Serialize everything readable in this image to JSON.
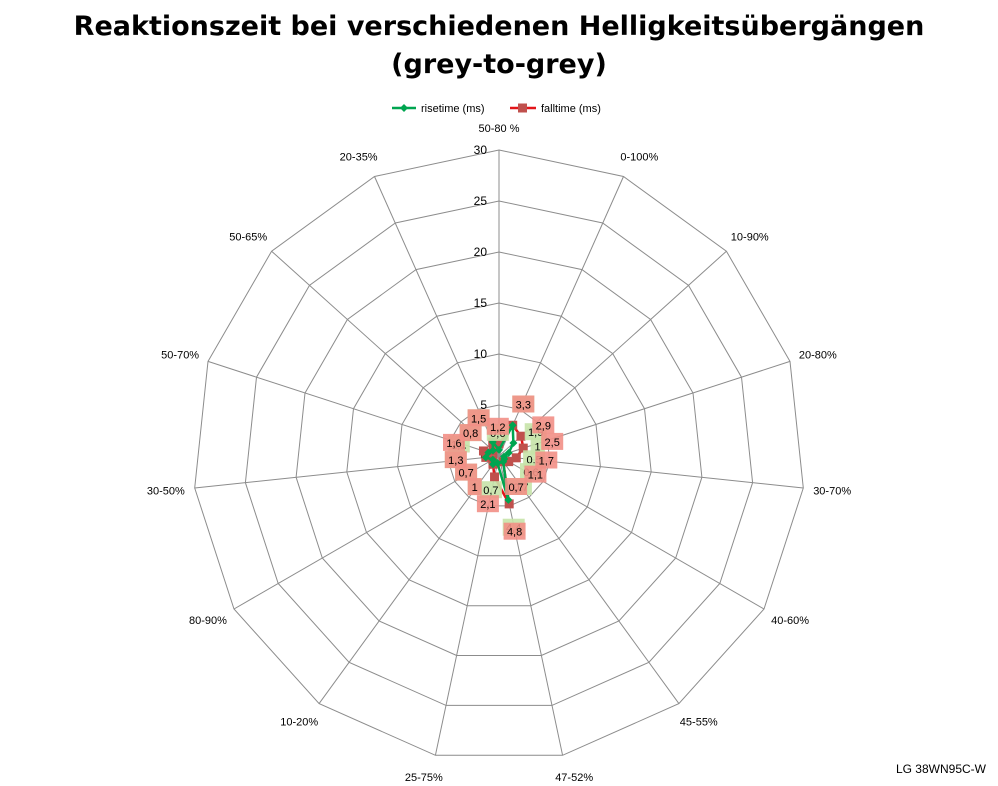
{
  "chart_data": {
    "type": "radar",
    "title_line1": "Reaktionszeit bei verschiedenen Helligkeitsübergängen",
    "title_line2": "(grey-to-grey)",
    "categories": [
      "50-80 %",
      "0-100%",
      "10-90%",
      "20-80%",
      "30-70%",
      "40-60%",
      "45-55%",
      "47-52%",
      "25-75%",
      "10-20%",
      "80-90%",
      "30-50%",
      "50-70%",
      "50-65%",
      "20-35%"
    ],
    "rlim": [
      0,
      30
    ],
    "ticks": [
      "0",
      "5",
      "10",
      "15",
      "20",
      "25",
      "30"
    ],
    "grid": true,
    "legend_position": "top",
    "series": [
      {
        "name": "risetime (ms)",
        "color": "#00a550",
        "label_bg": "#c6e3a8",
        "values": [
          0.6,
          3.3,
          1.9,
          1.0,
          0.5,
          0.6,
          0.7,
          4.4,
          0.7,
          1.0,
          0.7,
          1.3,
          1.1,
          0.8,
          1.5
        ],
        "labels": [
          "0,6",
          "3,3",
          "1,9",
          "1",
          "0,5",
          "0,6",
          "0,7",
          "4,4",
          "0,7",
          "1",
          "0,7",
          "1,3",
          "1,1",
          "0,8",
          "1,5"
        ]
      },
      {
        "name": "falltime (ms)",
        "color": "#e3151a",
        "marker_color": "#c0504d",
        "label_bg": "#f28f86",
        "values": [
          1.2,
          3.3,
          2.9,
          2.5,
          1.7,
          1.1,
          0.7,
          4.8,
          2.1,
          1.0,
          0.7,
          1.3,
          1.6,
          0.8,
          1.5
        ],
        "labels": [
          "1,2",
          "3,3",
          "2,9",
          "2,5",
          "1,7",
          "1,1",
          "0,7",
          "4,8",
          "2,1",
          "1",
          "0,7",
          "1,3",
          "1,6",
          "0,8",
          "1,5"
        ]
      }
    ]
  },
  "watermark": "LG 38WN95C-W"
}
